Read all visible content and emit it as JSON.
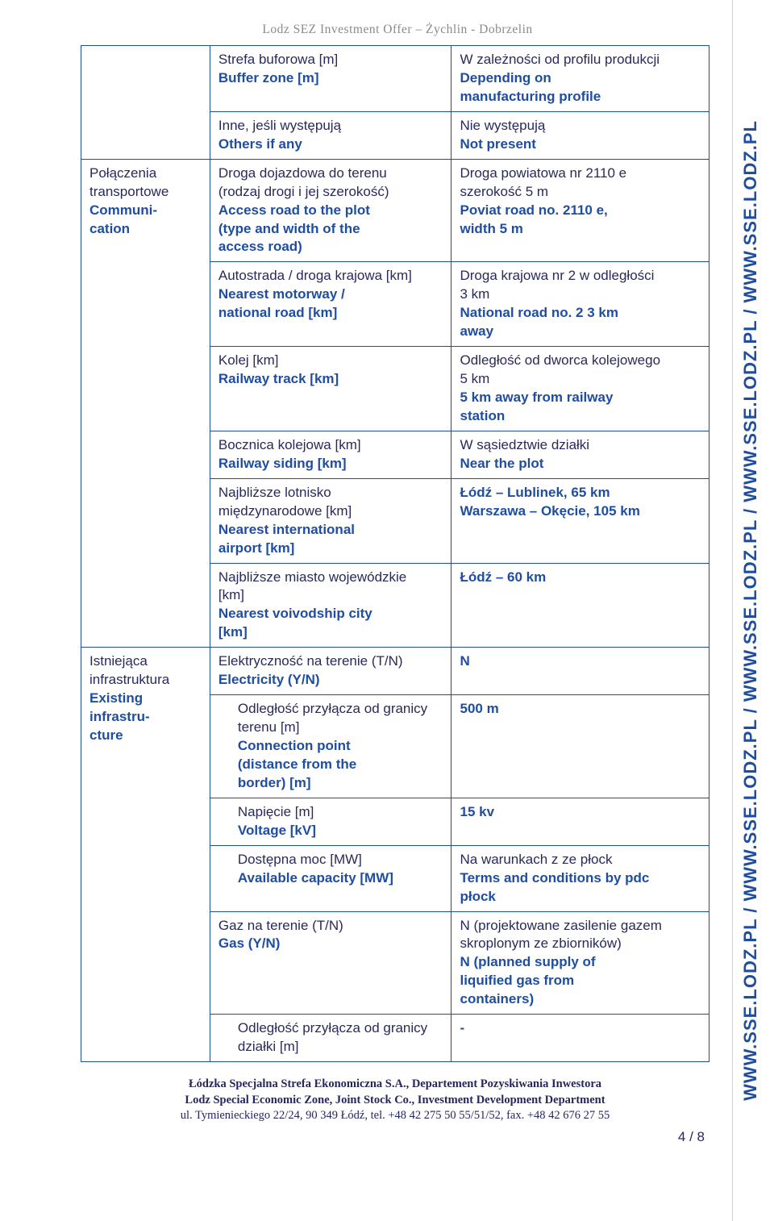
{
  "header": "Lodz SEZ Investment Offer – Żychlin - Dobrzelin",
  "sideText": "WWW.SSE.LODZ.PL / WWW.SSE.LODZ.PL / WWW.SSE.LODZ.PL / WWW.SSE.LODZ.PL / WWW.SSE.LODZ.PL",
  "rows": {
    "buffer": {
      "pl": "Strefa buforowa [m]",
      "en": "Buffer zone [m]",
      "rpl": "W zależności od profilu produkcji",
      "ren1": "Depending on",
      "ren2": "manufacturing profile"
    },
    "others": {
      "pl": "Inne, jeśli występują",
      "en": "Others if any",
      "rpl": "Nie występują",
      "ren": "Not present"
    },
    "comm": {
      "cat_pl": "Połączenia transportowe",
      "cat_en1": "Communi-",
      "cat_en2": "cation"
    },
    "access": {
      "pl1": "Droga dojazdowa do terenu",
      "pl2": "(rodzaj drogi i jej szerokość)",
      "en1": "Access road to the plot",
      "en2": "(type and width of the",
      "en3": "access road)",
      "rpl1": "Droga powiatowa nr 2110 e",
      "rpl2": "szerokość 5 m",
      "ren1": "Poviat road no. 2110 e,",
      "ren2": "width 5 m"
    },
    "motorway": {
      "pl": "Autostrada / droga krajowa [km]",
      "en1": "Nearest motorway /",
      "en2": "national road [km]",
      "rpl1": "Droga krajowa nr 2 w odległości",
      "rpl2": "3 km",
      "ren1": "National road no. 2 3 km",
      "ren2": "away"
    },
    "rail": {
      "pl": "Kolej [km]",
      "en": "Railway track [km]",
      "rpl1": "Odległość od dworca kolejowego",
      "rpl2": "5 km",
      "ren1": "5 km away from railway",
      "ren2": "station"
    },
    "siding": {
      "pl": "Bocznica kolejowa [km]",
      "en": "Railway siding [km]",
      "rpl": "W sąsiedztwie działki",
      "ren": "Near the plot"
    },
    "airport": {
      "pl1": "Najbliższe lotnisko",
      "pl2": "międzynarodowe [km]",
      "en1": "Nearest international",
      "en2": "airport [km]",
      "ren1": "Łódź – Lublinek, 65 km",
      "ren2": "Warszawa – Okęcie, 105 km"
    },
    "voiv": {
      "pl1": "Najbliższe miasto wojewódzkie",
      "pl2": "[km]",
      "en1": "Nearest voivodship city",
      "en2": "[km]",
      "ren": "Łódź – 60 km"
    },
    "infra": {
      "cat_pl1": "Istniejąca",
      "cat_pl2": "infrastruktura",
      "cat_en1": "Existing",
      "cat_en2": "infrastru-",
      "cat_en3": "cture"
    },
    "elec": {
      "pl": "Elektryczność na terenie (T/N)",
      "en": "Electricity (Y/N)",
      "ren": "N"
    },
    "conn": {
      "pl1": "Odległość przyłącza od granicy",
      "pl2": "terenu [m]",
      "en1": "Connection point",
      "en2": "(distance from the",
      "en3": "border) [m]",
      "ren": "500 m"
    },
    "volt": {
      "pl": "Napięcie [m]",
      "en": "Voltage [kV]",
      "ren": "15 kv"
    },
    "cap": {
      "pl": "Dostępna moc [MW]",
      "en": "Available capacity [MW]",
      "rpl": "Na warunkach z ze płock",
      "ren1": "Terms and conditions by pdc",
      "ren2": "płock"
    },
    "gas": {
      "pl": "Gaz na terenie (T/N)",
      "en": "Gas (Y/N)",
      "rpl1": "N (projektowane zasilenie gazem",
      "rpl2": "skroplonym ze zbiorników)",
      "ren1": "N (planned supply of",
      "ren2": "liquified gas from",
      "ren3": "containers)"
    },
    "gasd": {
      "pl1": "Odległość przyłącza od granicy",
      "pl2": "działki [m]",
      "ren": "-"
    }
  },
  "footer": {
    "l1": "Łódzka Specjalna Strefa Ekonomiczna S.A., Departement Pozyskiwania Inwestora",
    "l2": "Lodz Special Economic Zone, Joint Stock Co., Investment Development Department",
    "l3": "ul. Tymienieckiego 22/24, 90 349 Łódź, tel. +48 42 275 50 55/51/52, fax. +48 42 676 27 55"
  },
  "pagenum": "4 / 8",
  "colors": {
    "accent": "#1f4ea1",
    "text": "#2a2a5a",
    "grey": "#8a8a8a"
  }
}
